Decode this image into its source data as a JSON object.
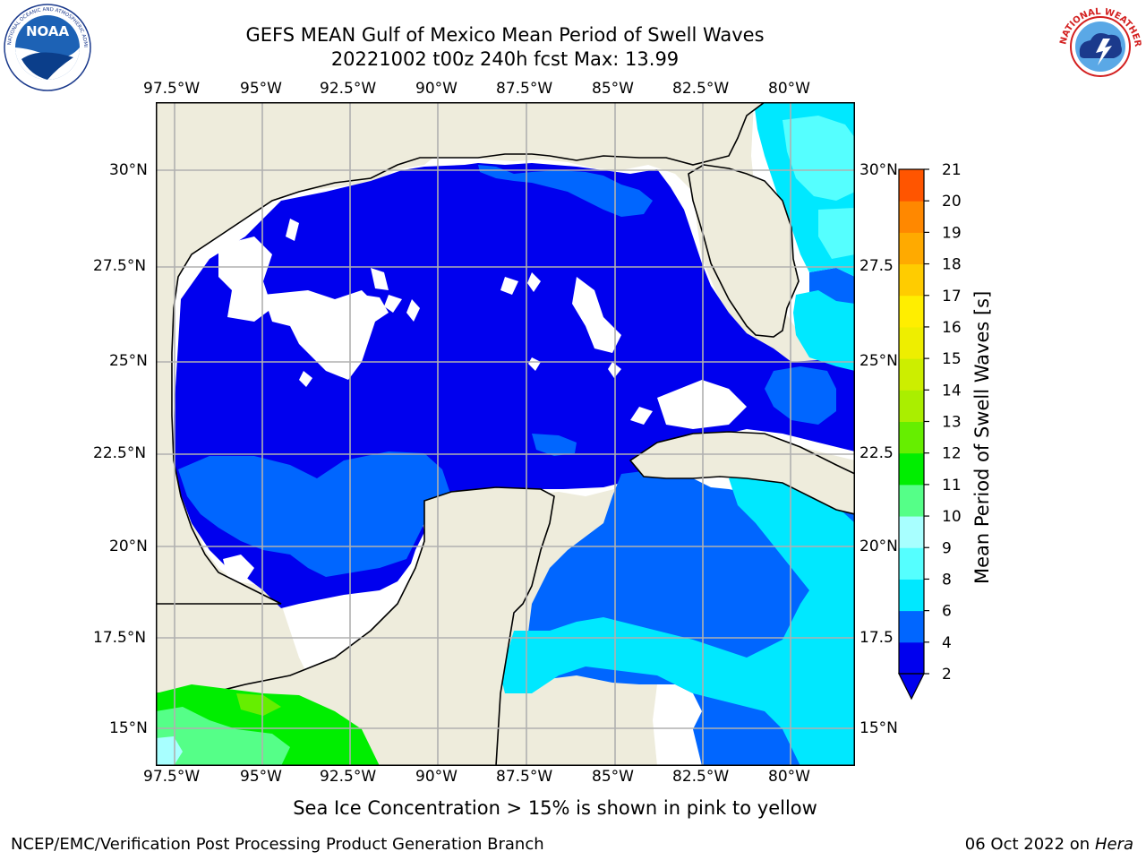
{
  "header": {
    "title_line1": "GEFS MEAN Gulf of Mexico Mean Period of Swell Waves",
    "title_line2": "20221002 t00z 240h fcst   Max: 13.99"
  },
  "logos": {
    "left": {
      "name": "NOAA",
      "text": "NOAA",
      "ring_text": "NATIONAL OCEANIC AND ATMOSPHERIC ADMINISTRATION · U.S. DEPARTMENT OF COMMERCE"
    },
    "right": {
      "name": "National Weather Service",
      "ring_text": "NATIONAL WEATHER SERVICE"
    }
  },
  "map": {
    "lon_labels": [
      "97.5°W",
      "95°W",
      "92.5°W",
      "90°W",
      "87.5°W",
      "85°W",
      "82.5°W",
      "80°W"
    ],
    "lat_labels": [
      "30°N",
      "27.5°N",
      "25°N",
      "22.5°N",
      "20°N",
      "17.5°N",
      "15°N"
    ],
    "right_lat_labels": [
      "30°N",
      "27.5",
      "25°N",
      "22.5",
      "20°N",
      "17.5",
      "15°N"
    ],
    "colors": {
      "land": "#eeecdc",
      "grid": "#b0b0b0",
      "coast": "#000000"
    }
  },
  "colorbar": {
    "label": "Mean Period of Swell Waves [s]",
    "ticks": [
      "2",
      "4",
      "6",
      "8",
      "9",
      "10",
      "11",
      "12",
      "13",
      "14",
      "15",
      "16",
      "17",
      "18",
      "19",
      "20",
      "21"
    ],
    "colors": [
      "#0000ee",
      "#0066ff",
      "#00e8ff",
      "#55ffff",
      "#a8ffff",
      "#55ff88",
      "#00ee00",
      "#66ee00",
      "#aaee00",
      "#ccee00",
      "#eeee00",
      "#ffee00",
      "#ffcc00",
      "#ffaa00",
      "#ff8800",
      "#ff5500",
      "#ff2200",
      "#ff0000"
    ],
    "extend_color": "#0000ee"
  },
  "footer": {
    "subtitle": "Sea Ice Concentration > 15% is shown in pink to yellow",
    "credit": "NCEP/EMC/Verification Post Processing Product Generation Branch",
    "date": "06 Oct 2022 on",
    "host": "Hera"
  }
}
